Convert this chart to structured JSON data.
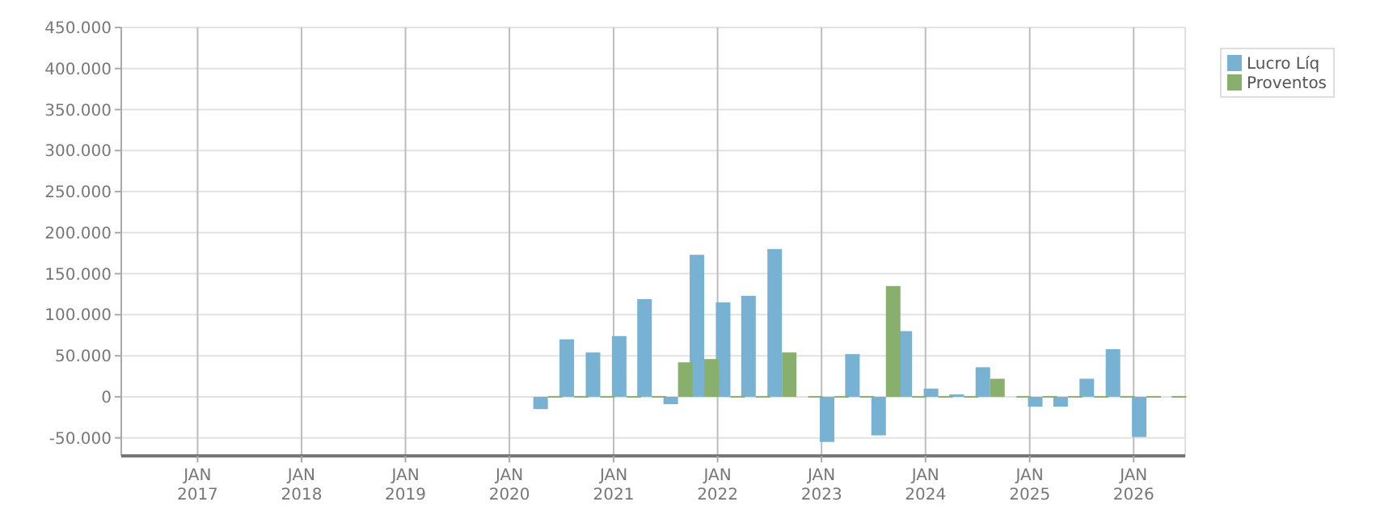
{
  "chart_data": {
    "type": "bar",
    "x": [
      "2020-05-15",
      "2020-08-15",
      "2020-11-15",
      "2021-02-15",
      "2021-05-15",
      "2021-08-15",
      "2021-11-15",
      "2022-02-15",
      "2022-05-15",
      "2022-08-15",
      "2022-11-15",
      "2023-02-15",
      "2023-05-15",
      "2023-08-15",
      "2023-11-15",
      "2024-02-15",
      "2024-05-15",
      "2024-08-15",
      "2024-11-15",
      "2025-02-15",
      "2025-05-15",
      "2025-08-15",
      "2025-11-15",
      "2026-02-15",
      "2026-05-15"
    ],
    "series": [
      {
        "name": "Lucro Líq",
        "color": "#78b2d3",
        "values": [
          -15000,
          70000,
          54000,
          74000,
          119000,
          -9000,
          173000,
          115000,
          123000,
          180000,
          null,
          -55000,
          52000,
          -47000,
          80000,
          10000,
          3000,
          36000,
          null,
          -12000,
          -12000,
          22000,
          58000,
          -49000,
          null
        ]
      },
      {
        "name": "Proventos",
        "color": "#88b06c",
        "values": [
          0,
          0,
          0,
          0,
          0,
          42000,
          46000,
          0,
          0,
          54000,
          0,
          0,
          0,
          135000,
          0,
          0,
          0,
          22000,
          0,
          0,
          0,
          0,
          0,
          0,
          0
        ]
      }
    ],
    "xlim": [
      "2016-04-08",
      "2026-07-01"
    ],
    "xticks": [
      {
        "value": "2017-01-01",
        "label": "JAN 2017"
      },
      {
        "value": "2018-01-01",
        "label": "JAN 2018"
      },
      {
        "value": "2019-01-01",
        "label": "JAN 2019"
      },
      {
        "value": "2020-01-01",
        "label": "JAN 2020"
      },
      {
        "value": "2021-01-01",
        "label": "JAN 2021"
      },
      {
        "value": "2022-01-01",
        "label": "JAN 2022"
      },
      {
        "value": "2023-01-01",
        "label": "JAN 2023"
      },
      {
        "value": "2024-01-01",
        "label": "JAN 2024"
      },
      {
        "value": "2025-01-01",
        "label": "JAN 2025"
      },
      {
        "value": "2026-01-01",
        "label": "JAN 2026"
      }
    ],
    "ylim": [
      -72000,
      450000
    ],
    "yticks": [
      {
        "value": -50000,
        "label": "-50.000"
      },
      0,
      {
        "value": 50000,
        "label": "50.000"
      },
      {
        "value": 100000,
        "label": "100.000"
      },
      {
        "value": 150000,
        "label": "150.000"
      },
      {
        "value": 200000,
        "label": "200.000"
      },
      {
        "value": 250000,
        "label": "250.000"
      },
      {
        "value": 300000,
        "label": "300.000"
      },
      {
        "value": 350000,
        "label": "350.000"
      },
      {
        "value": 400000,
        "label": "400.000"
      },
      {
        "value": 450000,
        "label": "450.000"
      }
    ],
    "grid": true,
    "legend": "top right"
  }
}
